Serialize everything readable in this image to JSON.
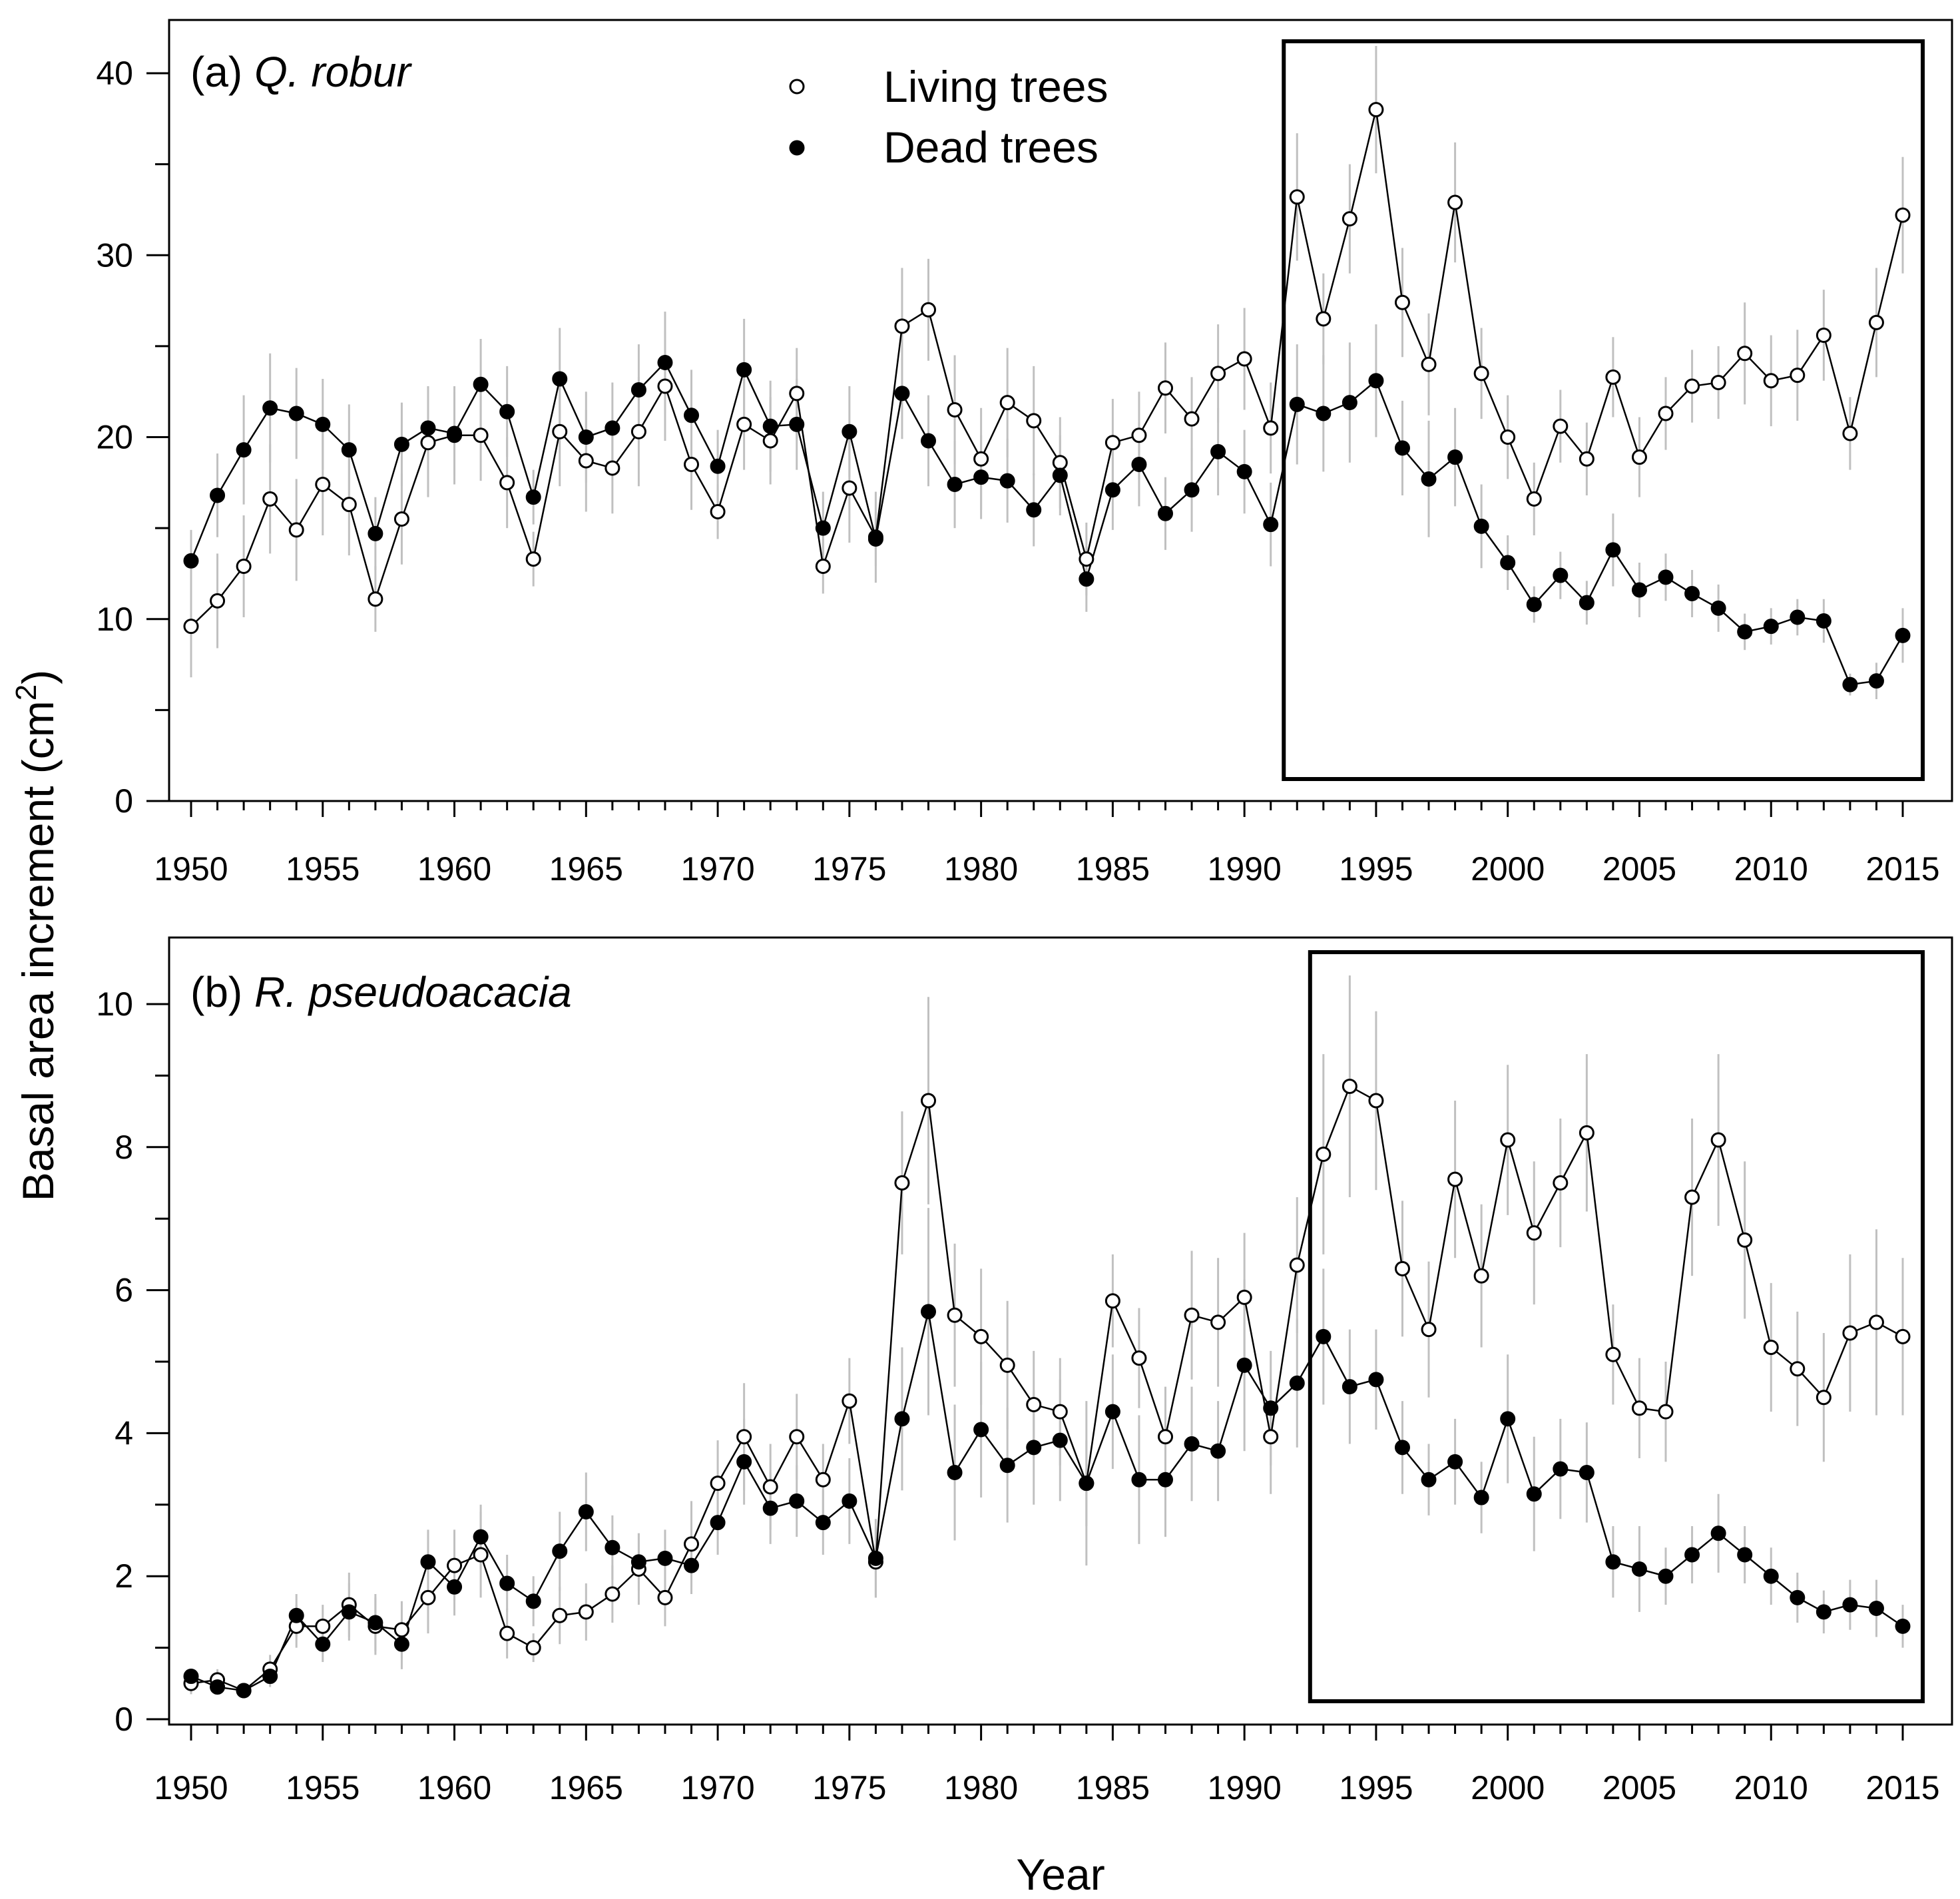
{
  "chart_data": [
    {
      "type": "line",
      "panel_label": "(a) ",
      "species": "Q. robur",
      "xlabel": "Year",
      "ylabel": "Basal area increment (cm²)",
      "xlim": [
        1950,
        2015
      ],
      "ylim": [
        0,
        40
      ],
      "xticks": [
        1950,
        1955,
        1960,
        1965,
        1970,
        1975,
        1980,
        1985,
        1990,
        1995,
        2000,
        2005,
        2010,
        2015
      ],
      "yticks": [
        0,
        10,
        20,
        30,
        40
      ],
      "legend": {
        "placement": "top-center",
        "entries": [
          "Living trees",
          "Dead trees"
        ]
      },
      "highlight_box": {
        "from_year": 1992,
        "to_year": 2015
      },
      "x": [
        1950,
        1951,
        1952,
        1953,
        1954,
        1955,
        1956,
        1957,
        1958,
        1959,
        1960,
        1961,
        1962,
        1963,
        1964,
        1965,
        1966,
        1967,
        1968,
        1969,
        1970,
        1971,
        1972,
        1973,
        1974,
        1975,
        1976,
        1977,
        1978,
        1979,
        1980,
        1981,
        1982,
        1983,
        1984,
        1985,
        1986,
        1987,
        1988,
        1989,
        1990,
        1991,
        1992,
        1993,
        1994,
        1995,
        1996,
        1997,
        1998,
        1999,
        2000,
        2001,
        2002,
        2003,
        2004,
        2005,
        2006,
        2007,
        2008,
        2009,
        2010,
        2011,
        2012,
        2013,
        2014,
        2015
      ],
      "series": [
        {
          "name": "Living trees",
          "marker": "open-circle",
          "values": [
            9.6,
            11.0,
            12.9,
            16.6,
            14.9,
            17.4,
            16.3,
            11.1,
            15.5,
            19.7,
            20.1,
            20.1,
            17.5,
            13.3,
            20.3,
            18.7,
            18.3,
            20.3,
            22.8,
            18.5,
            15.9,
            20.7,
            19.8,
            22.4,
            12.9,
            17.2,
            14.5,
            26.1,
            27.0,
            21.5,
            18.8,
            21.9,
            20.9,
            18.6,
            13.3,
            19.7,
            20.1,
            22.7,
            21.0,
            23.5,
            24.3,
            20.5,
            33.2,
            26.5,
            32.0,
            38.0,
            27.4,
            24.0,
            32.9,
            23.5,
            20.0,
            16.6,
            20.6,
            18.8,
            23.3,
            18.9,
            21.3,
            22.8,
            23.0,
            24.6,
            23.1,
            23.4,
            25.6,
            20.2,
            26.3,
            32.2
          ],
          "error": [
            2.8,
            2.6,
            2.8,
            3.0,
            2.8,
            2.8,
            2.8,
            1.8,
            2.5,
            3.0,
            2.7,
            2.5,
            2.5,
            1.5,
            3.0,
            2.8,
            2.5,
            3.0,
            3.0,
            2.5,
            1.5,
            2.5,
            2.4,
            2.5,
            1.5,
            3.0,
            2.5,
            3.2,
            2.8,
            3.0,
            2.8,
            3.0,
            3.0,
            2.5,
            2.0,
            2.4,
            2.4,
            2.5,
            2.3,
            2.7,
            2.8,
            2.5,
            3.5,
            2.5,
            3.0,
            3.5,
            3.0,
            2.8,
            3.3,
            2.5,
            2.3,
            2.0,
            2.0,
            2.0,
            2.2,
            2.2,
            2.0,
            2.0,
            2.0,
            2.8,
            2.5,
            2.5,
            2.5,
            2.0,
            3.0,
            3.2
          ]
        },
        {
          "name": "Dead trees",
          "marker": "filled-circle",
          "values": [
            13.2,
            16.8,
            19.3,
            21.6,
            21.3,
            20.7,
            19.3,
            14.7,
            19.6,
            20.5,
            20.2,
            22.9,
            21.4,
            16.7,
            23.2,
            20.0,
            20.5,
            22.6,
            24.1,
            21.2,
            18.4,
            23.7,
            20.6,
            20.7,
            15.0,
            20.3,
            14.4,
            22.4,
            19.8,
            17.4,
            17.8,
            17.6,
            16.0,
            17.9,
            12.2,
            17.1,
            18.5,
            15.8,
            17.1,
            19.2,
            18.1,
            15.2,
            21.8,
            21.3,
            21.9,
            23.1,
            19.4,
            17.7,
            18.9,
            15.1,
            13.1,
            10.8,
            12.4,
            10.9,
            13.8,
            11.6,
            12.3,
            11.4,
            10.6,
            9.3,
            9.6,
            10.1,
            9.9,
            6.4,
            6.6,
            9.1
          ],
          "error": [
            1.7,
            2.3,
            3.0,
            3.0,
            2.5,
            2.5,
            2.5,
            2.0,
            2.3,
            2.3,
            2.3,
            2.5,
            2.5,
            1.5,
            2.8,
            2.5,
            2.5,
            2.5,
            2.8,
            2.5,
            2.0,
            2.8,
            2.5,
            2.5,
            2.0,
            2.5,
            1.5,
            2.5,
            2.5,
            2.4,
            2.3,
            2.3,
            2.0,
            2.2,
            1.8,
            2.2,
            2.3,
            2.0,
            2.3,
            2.4,
            2.3,
            2.3,
            3.3,
            3.2,
            3.3,
            3.1,
            2.6,
            3.2,
            2.7,
            2.3,
            1.5,
            1.0,
            1.3,
            1.2,
            2.0,
            1.5,
            1.3,
            1.3,
            1.3,
            1.0,
            1.0,
            1.0,
            1.2,
            0.6,
            1.0,
            1.5
          ]
        }
      ]
    },
    {
      "type": "line",
      "panel_label": "(b) ",
      "species": "R. pseudoacacia",
      "xlabel": "Year",
      "ylabel": "Basal area increment (cm²)",
      "xlim": [
        1950,
        2015
      ],
      "ylim": [
        0,
        10
      ],
      "xticks": [
        1950,
        1955,
        1960,
        1965,
        1970,
        1975,
        1980,
        1985,
        1990,
        1995,
        2000,
        2005,
        2010,
        2015
      ],
      "yticks": [
        0,
        2,
        4,
        6,
        8,
        10
      ],
      "highlight_box": {
        "from_year": 1993,
        "to_year": 2015
      },
      "x": [
        1950,
        1951,
        1952,
        1953,
        1954,
        1955,
        1956,
        1957,
        1958,
        1959,
        1960,
        1961,
        1962,
        1963,
        1964,
        1965,
        1966,
        1967,
        1968,
        1969,
        1970,
        1971,
        1972,
        1973,
        1974,
        1975,
        1976,
        1977,
        1978,
        1979,
        1980,
        1981,
        1982,
        1983,
        1984,
        1985,
        1986,
        1987,
        1988,
        1989,
        1990,
        1991,
        1992,
        1993,
        1994,
        1995,
        1996,
        1997,
        1998,
        1999,
        2000,
        2001,
        2002,
        2003,
        2004,
        2005,
        2006,
        2007,
        2008,
        2009,
        2010,
        2011,
        2012,
        2013,
        2014,
        2015
      ],
      "series": [
        {
          "name": "Living trees",
          "marker": "open-circle",
          "values": [
            0.5,
            0.55,
            0.4,
            0.7,
            1.3,
            1.3,
            1.6,
            1.3,
            1.25,
            1.7,
            2.15,
            2.3,
            1.2,
            1.0,
            1.45,
            1.5,
            1.75,
            2.1,
            1.7,
            2.45,
            3.3,
            3.95,
            3.25,
            3.95,
            3.35,
            4.45,
            2.2,
            7.5,
            8.65,
            5.65,
            5.35,
            4.95,
            4.4,
            4.3,
            3.3,
            5.85,
            5.05,
            3.95,
            5.65,
            5.55,
            5.9,
            3.95,
            6.35,
            7.9,
            8.85,
            8.65,
            6.3,
            5.45,
            7.55,
            6.2,
            8.1,
            6.8,
            7.5,
            8.2,
            5.1,
            4.35,
            4.3,
            7.3,
            8.1,
            6.7,
            5.2,
            4.9,
            4.5,
            5.4,
            5.55,
            5.35
          ],
          "error": [
            0.15,
            0.15,
            0.1,
            0.2,
            0.3,
            0.3,
            0.45,
            0.4,
            0.4,
            0.5,
            0.5,
            0.6,
            0.35,
            0.2,
            0.4,
            0.4,
            0.4,
            0.5,
            0.4,
            0.6,
            0.6,
            0.75,
            0.6,
            0.6,
            0.5,
            0.6,
            0.5,
            1.0,
            1.45,
            1.0,
            0.95,
            0.9,
            0.75,
            0.75,
            0.6,
            0.65,
            0.7,
            0.7,
            0.9,
            0.9,
            0.9,
            0.8,
            0.95,
            1.4,
            1.55,
            1.25,
            0.95,
            0.95,
            1.1,
            1.0,
            1.05,
            1.0,
            0.9,
            1.1,
            0.7,
            0.7,
            0.7,
            1.1,
            1.2,
            1.1,
            0.9,
            0.8,
            0.9,
            1.1,
            1.3,
            1.1
          ]
        },
        {
          "name": "Dead trees",
          "marker": "filled-circle",
          "values": [
            0.6,
            0.45,
            0.4,
            0.6,
            1.45,
            1.05,
            1.5,
            1.35,
            1.05,
            2.2,
            1.85,
            2.55,
            1.9,
            1.65,
            2.35,
            2.9,
            2.4,
            2.2,
            2.25,
            2.15,
            2.75,
            3.6,
            2.95,
            3.05,
            2.75,
            3.05,
            2.25,
            4.2,
            5.7,
            3.45,
            4.05,
            3.55,
            3.8,
            3.9,
            3.3,
            4.3,
            3.35,
            3.35,
            3.85,
            3.75,
            4.95,
            4.35,
            4.7,
            5.35,
            4.65,
            4.75,
            3.8,
            3.35,
            3.6,
            3.1,
            4.2,
            3.15,
            3.5,
            3.45,
            2.2,
            2.1,
            2.0,
            2.3,
            2.6,
            2.3,
            2.0,
            1.7,
            1.5,
            1.6,
            1.55,
            1.3
          ],
          "error": [
            0.1,
            0.1,
            0.1,
            0.15,
            0.3,
            0.25,
            0.4,
            0.4,
            0.35,
            0.45,
            0.4,
            0.45,
            0.4,
            0.35,
            0.55,
            0.55,
            0.45,
            0.4,
            0.4,
            0.4,
            0.45,
            0.6,
            0.5,
            0.5,
            0.45,
            0.6,
            0.55,
            1.0,
            1.45,
            0.95,
            0.95,
            0.8,
            0.8,
            0.85,
            1.15,
            0.8,
            0.9,
            0.8,
            0.8,
            0.7,
            1.2,
            0.8,
            0.9,
            0.95,
            0.8,
            0.7,
            0.65,
            0.5,
            0.6,
            0.5,
            0.9,
            0.8,
            0.7,
            0.7,
            0.5,
            0.6,
            0.4,
            0.4,
            0.55,
            0.4,
            0.4,
            0.35,
            0.3,
            0.35,
            0.4,
            0.3
          ]
        }
      ]
    }
  ],
  "legend": {
    "living": "Living trees",
    "dead": "Dead trees"
  },
  "axis": {
    "x_title": "Year",
    "y_title": "Basal area increment (cm",
    "y_title_sup": "2",
    "y_title_end": ")"
  },
  "colors": {
    "line": "#000000",
    "error_bar": "#c0c0c0",
    "open_fill": "#ffffff",
    "filled_fill": "#000000"
  }
}
